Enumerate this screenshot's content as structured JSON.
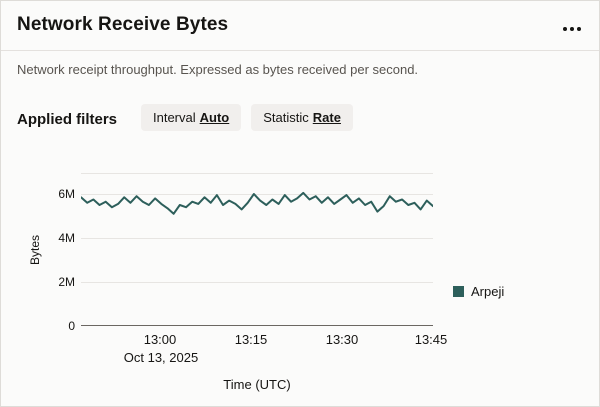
{
  "panel": {
    "title": "Network Receive Bytes",
    "description": "Network receipt throughput. Expressed as bytes received per second.",
    "filters": {
      "label": "Applied filters",
      "chips": [
        {
          "prefix": "Interval",
          "value": "Auto"
        },
        {
          "prefix": "Statistic",
          "value": "Rate"
        }
      ]
    }
  },
  "colors": {
    "accent_teal": "#2d5f5b",
    "text_primary": "#161513",
    "text_secondary": "#58544f",
    "chip_background": "#f1efed",
    "gridline": "#e7e5e2"
  },
  "chart_data": {
    "type": "line",
    "title": "Network Receive Bytes",
    "xlabel": "Time (UTC)",
    "ylabel": "Bytes",
    "x_start": "12:47",
    "x_end": "13:45",
    "x_ticks": [
      "13:00",
      "13:15",
      "13:30",
      "13:45"
    ],
    "x_date_label": "Oct 13, 2025",
    "y_ticks": [
      "0",
      "2M",
      "4M",
      "6M"
    ],
    "ylim": [
      0,
      6954545
    ],
    "grid": "horizontal",
    "legend_position": "right",
    "series": [
      {
        "name": "Arpeji",
        "color": "#2d5f5b",
        "values": [
          5850000,
          5600000,
          5750000,
          5500000,
          5650000,
          5400000,
          5550000,
          5850000,
          5600000,
          5900000,
          5650000,
          5500000,
          5800000,
          5550000,
          5350000,
          5100000,
          5500000,
          5400000,
          5650000,
          5550000,
          5850000,
          5600000,
          5950000,
          5500000,
          5700000,
          5550000,
          5300000,
          5600000,
          6000000,
          5700000,
          5500000,
          5750000,
          5550000,
          5950000,
          5650000,
          5800000,
          6050000,
          5750000,
          5900000,
          5600000,
          5850000,
          5550000,
          5750000,
          5950000,
          5600000,
          5800000,
          5500000,
          5650000,
          5200000,
          5450000,
          5900000,
          5650000,
          5750000,
          5500000,
          5600000,
          5300000,
          5700000,
          5450000
        ]
      }
    ]
  }
}
